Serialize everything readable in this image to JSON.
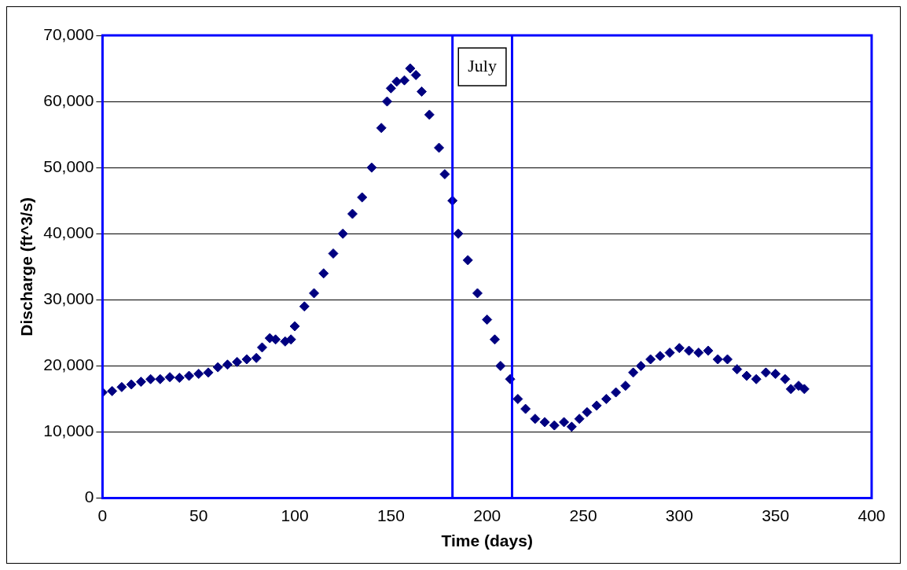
{
  "chart_data": {
    "type": "scatter",
    "xlabel": "Time (days)",
    "ylabel": "Discharge (ft^3/s)",
    "xlim": [
      0,
      400
    ],
    "xticks": [
      0,
      50,
      100,
      150,
      200,
      250,
      300,
      350,
      400
    ],
    "ylim": [
      0,
      70000
    ],
    "yticks": [
      0,
      {
        "value": 10000,
        "label": "10,000"
      },
      {
        "value": 20000,
        "label": "20,000"
      },
      {
        "value": 30000,
        "label": "30,000"
      },
      {
        "value": 40000,
        "label": "40,000"
      },
      {
        "value": 50000,
        "label": "50,000"
      },
      {
        "value": 60000,
        "label": "60,000"
      },
      {
        "value": 70000,
        "label": "70,000"
      }
    ],
    "grid": "y",
    "marker": "diamond",
    "legend": false,
    "ref_lines": [
      {
        "axis": "x",
        "value": 182,
        "color": "#0000ff"
      },
      {
        "axis": "x",
        "value": 213,
        "color": "#0000ff"
      }
    ],
    "annotations": [
      "July"
    ],
    "series": [
      {
        "color": "#000080",
        "x": [
          0,
          5,
          10,
          15,
          20,
          25,
          30,
          35,
          40,
          45,
          50,
          55,
          60,
          65,
          70,
          75,
          80,
          83,
          87,
          90,
          95,
          98,
          100,
          105,
          110,
          115,
          120,
          125,
          130,
          135,
          140,
          145,
          148,
          150,
          153,
          157,
          160,
          163,
          166,
          170,
          175,
          178,
          182,
          185,
          190,
          195,
          200,
          204,
          207,
          212,
          216,
          220,
          225,
          230,
          235,
          240,
          244,
          248,
          252,
          257,
          262,
          267,
          272,
          276,
          280,
          285,
          290,
          295,
          300,
          305,
          310,
          315,
          320,
          325,
          330,
          335,
          340,
          345,
          350,
          355,
          358,
          362,
          365
        ],
        "values": [
          16000,
          16200,
          16800,
          17200,
          17600,
          18000,
          18000,
          18300,
          18200,
          18500,
          18800,
          19000,
          19800,
          20200,
          20600,
          21000,
          21200,
          22800,
          24200,
          24000,
          23700,
          24000,
          26000,
          29000,
          31000,
          34000,
          37000,
          40000,
          43000,
          45500,
          50000,
          56000,
          60000,
          62000,
          63000,
          63200,
          65000,
          64000,
          61500,
          58000,
          53000,
          49000,
          45000,
          40000,
          36000,
          31000,
          27000,
          24000,
          20000,
          18000,
          15000,
          13500,
          12000,
          11500,
          11000,
          11500,
          10800,
          12000,
          13000,
          14000,
          15000,
          16000,
          17000,
          19000,
          20000,
          21000,
          21500,
          22000,
          22700,
          22300,
          22000,
          22300,
          21000,
          21000,
          19500,
          18500,
          18000,
          19000,
          18800,
          18000,
          16500,
          17000,
          16500
        ]
      }
    ]
  }
}
